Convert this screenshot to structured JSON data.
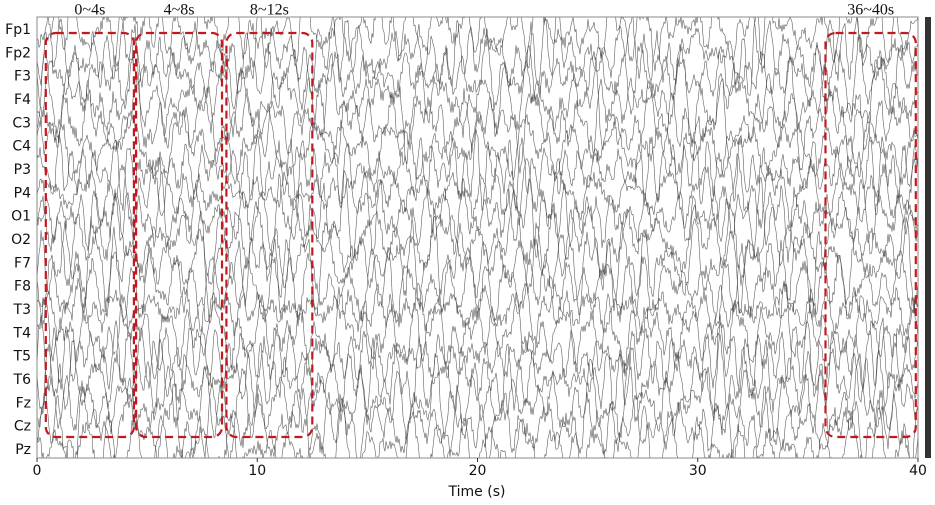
{
  "chart_data": {
    "type": "line",
    "xlabel": "Time (s)",
    "xlim": [
      0,
      40
    ],
    "xticks": [
      0,
      10,
      20,
      30,
      40
    ],
    "categories": [
      "Fp1",
      "Fp2",
      "F3",
      "F4",
      "C3",
      "C4",
      "P3",
      "P4",
      "O1",
      "O2",
      "F7",
      "F8",
      "T3",
      "T4",
      "T5",
      "T6",
      "Fz",
      "Cz",
      "Pz"
    ],
    "color": "#444444",
    "windows": [
      {
        "label": "0~4s",
        "start": 0.4,
        "end": 4.4,
        "color": "#c0191f"
      },
      {
        "label": "4~8s",
        "start": 4.5,
        "end": 8.4,
        "color": "#c0191f"
      },
      {
        "label": "8~12s",
        "start": 8.6,
        "end": 12.5,
        "color": "#c0191f"
      },
      {
        "label": "36~40s",
        "start": 35.8,
        "end": 39.9,
        "color": "#c0191f"
      }
    ]
  }
}
